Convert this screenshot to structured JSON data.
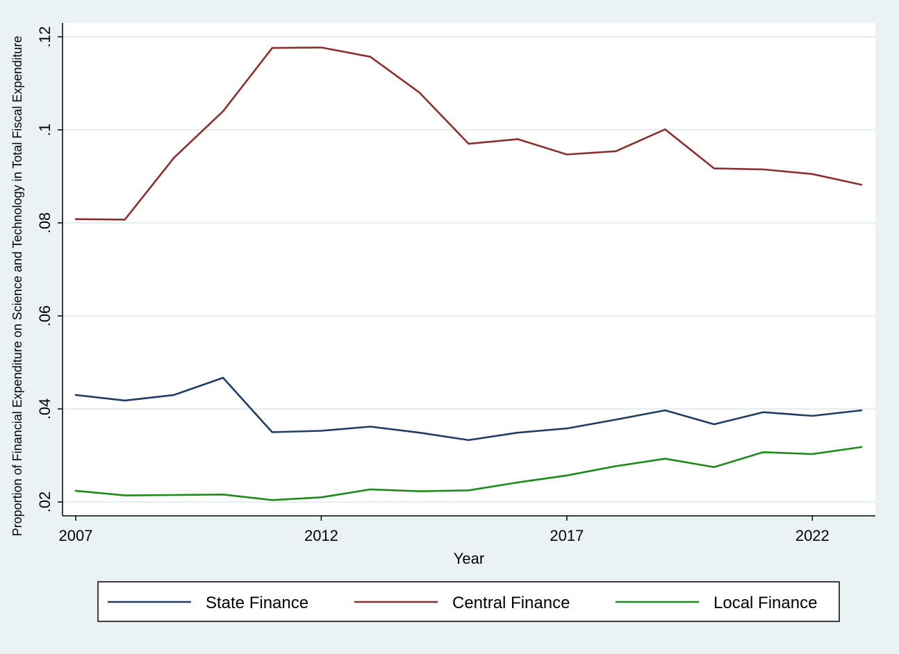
{
  "chart_data": {
    "type": "line",
    "title": "",
    "xlabel": "Year",
    "ylabel": "Proportion of Financial Expenditure on Science and Technology in Total Fiscal Expenditure",
    "x": [
      2007,
      2008,
      2009,
      2010,
      2011,
      2012,
      2013,
      2014,
      2015,
      2016,
      2017,
      2018,
      2019,
      2020,
      2021,
      2022,
      2023
    ],
    "xlim": [
      2007,
      2023
    ],
    "ylim": [
      0.02,
      0.12
    ],
    "xticks": [
      2007,
      2012,
      2017,
      2022
    ],
    "xtick_labels": [
      "2007",
      "2012",
      "2017",
      "2022"
    ],
    "yticks": [
      0.02,
      0.04,
      0.06,
      0.08,
      0.1,
      0.12
    ],
    "ytick_labels": [
      ".02",
      ".04",
      ".06",
      ".08",
      ".1",
      ".12"
    ],
    "grid": true,
    "legend_position": "bottom",
    "series": [
      {
        "name": "State Finance",
        "color": "#1f3b63",
        "values": [
          0.043,
          0.0418,
          0.043,
          0.0467,
          0.035,
          0.0353,
          0.0362,
          0.0349,
          0.0333,
          0.0349,
          0.0358,
          0.0377,
          0.0397,
          0.0367,
          0.0393,
          0.0385,
          0.0397
        ]
      },
      {
        "name": "Central Finance",
        "color": "#8b2e2e",
        "values": [
          0.0808,
          0.0807,
          0.094,
          0.104,
          0.1176,
          0.1177,
          0.1157,
          0.108,
          0.097,
          0.098,
          0.0947,
          0.0954,
          0.1001,
          0.0917,
          0.0915,
          0.0905,
          0.0882
        ]
      },
      {
        "name": "Local Finance",
        "color": "#1b8a1b",
        "values": [
          0.0224,
          0.0214,
          0.0215,
          0.0216,
          0.0204,
          0.021,
          0.0227,
          0.0223,
          0.0225,
          0.0242,
          0.0257,
          0.0277,
          0.0293,
          0.0275,
          0.0307,
          0.0303,
          0.0318
        ]
      }
    ]
  }
}
